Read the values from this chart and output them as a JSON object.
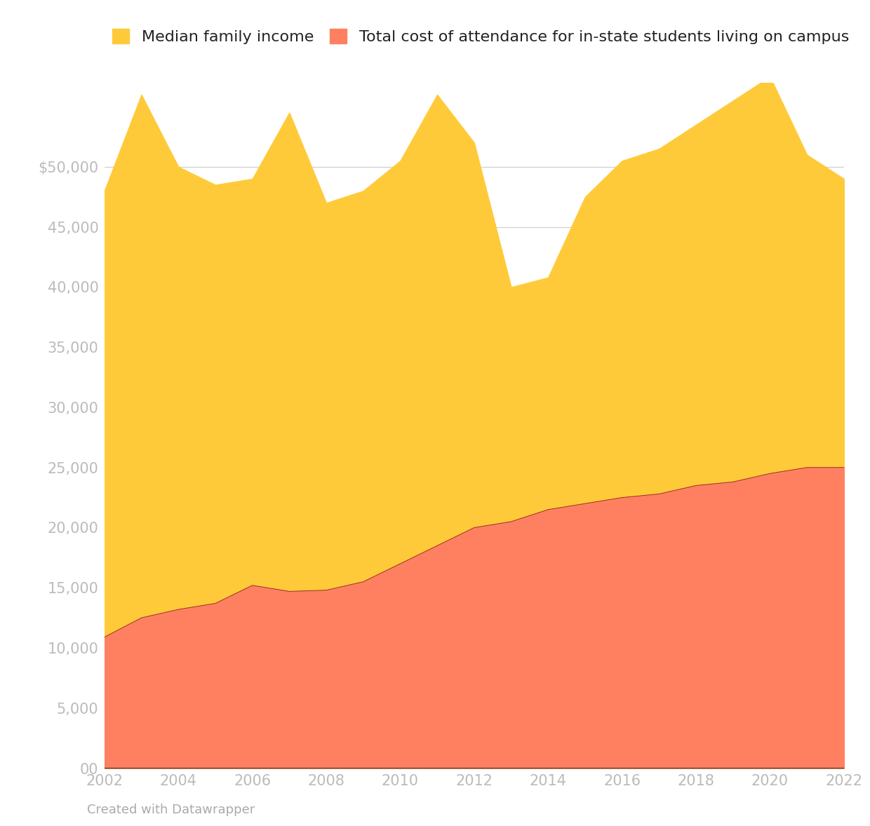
{
  "years": [
    2002,
    2003,
    2004,
    2005,
    2006,
    2007,
    2008,
    2009,
    2010,
    2011,
    2012,
    2013,
    2014,
    2015,
    2016,
    2017,
    2018,
    2019,
    2020,
    2021,
    2022
  ],
  "median_family_income": [
    48000,
    56000,
    50000,
    48500,
    49000,
    54500,
    47000,
    48000,
    50500,
    56000,
    52000,
    40000,
    40800,
    47500,
    50500,
    51500,
    53500,
    55500,
    57500,
    51000,
    49000
  ],
  "total_cost": [
    10900,
    12500,
    13200,
    13700,
    15200,
    14700,
    14800,
    15500,
    17000,
    18500,
    20000,
    20500,
    21500,
    22000,
    22500,
    22800,
    23500,
    23800,
    24500,
    25000,
    25000
  ],
  "income_color": "#FFCA3A",
  "cost_color": "#FF8060",
  "background_color": "#ffffff",
  "grid_color": "#cccccc",
  "tick_color": "#bbbbbb",
  "legend_label_income": "Median family income",
  "legend_label_cost": "Total cost of attendance for in-state students living on campus",
  "credit_text": "Created with Datawrapper",
  "yticks": [
    0,
    5000,
    10000,
    15000,
    20000,
    25000,
    30000,
    35000,
    40000,
    45000,
    50000
  ],
  "ytick_labels": [
    "00",
    "5,000",
    "10,000",
    "15,000",
    "20,000",
    "25,000",
    "30,000",
    "35,000",
    "40,000",
    "45,000",
    "$50,000"
  ],
  "ylim": [
    0,
    57000
  ],
  "xlim": [
    2002,
    2022
  ]
}
